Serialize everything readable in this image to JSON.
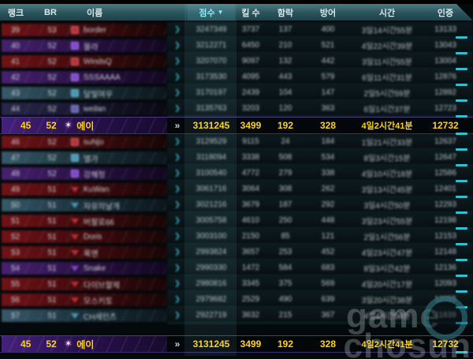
{
  "header": {
    "columns": [
      {
        "key": "rank",
        "label": "랭크"
      },
      {
        "key": "br",
        "label": "BR"
      },
      {
        "key": "name",
        "label": "이름"
      },
      {
        "key": "chev",
        "label": ""
      },
      {
        "key": "score",
        "label": "점수",
        "sorted": true
      },
      {
        "key": "kills",
        "label": "킬 수"
      },
      {
        "key": "capture",
        "label": "함락"
      },
      {
        "key": "defense",
        "label": "방어"
      },
      {
        "key": "time",
        "label": "시간"
      },
      {
        "key": "cert",
        "label": "인증"
      }
    ]
  },
  "icons": {
    "chevron": "❯",
    "chevron_highlight": "»",
    "sort_desc": "▼"
  },
  "colors": {
    "accent_cyan": "#8deefb",
    "highlight_yellow": "#ffd21e",
    "teal_dash": "#2fc0d2",
    "banner_red": "#7a1418",
    "banner_purple": "#4d2378",
    "banner_blue": "#3c6072"
  },
  "rows": [
    {
      "rank": "39",
      "br": "53",
      "name": "border",
      "score": "3247349",
      "kills": "3737",
      "capture": "137",
      "defense": "400",
      "time": "3일14시간55분",
      "cert": "13133",
      "theme": "red",
      "badge": "square",
      "highlighted": false
    },
    {
      "rank": "40",
      "br": "52",
      "name": "몰라",
      "score": "3212271",
      "kills": "6450",
      "capture": "210",
      "defense": "521",
      "time": "4일22시간39분",
      "cert": "13043",
      "theme": "purple",
      "badge": "square",
      "highlighted": false
    },
    {
      "rank": "41",
      "br": "52",
      "name": "WindsQ",
      "score": "3207070",
      "kills": "9097",
      "capture": "132",
      "defense": "442",
      "time": "3일11시간55분",
      "cert": "13004",
      "theme": "red",
      "badge": "square",
      "highlighted": false
    },
    {
      "rank": "42",
      "br": "52",
      "name": "SSSAAAA",
      "score": "3173530",
      "kills": "4095",
      "capture": "443",
      "defense": "579",
      "time": "6일11시간31분",
      "cert": "12876",
      "theme": "purple",
      "badge": "square",
      "highlighted": false
    },
    {
      "rank": "43",
      "br": "52",
      "name": "달빛여우",
      "score": "3170197",
      "kills": "2439",
      "capture": "104",
      "defense": "147",
      "time": "2일5시간59분",
      "cert": "12892",
      "theme": "blue",
      "badge": "square",
      "highlighted": false
    },
    {
      "rank": "44",
      "br": "52",
      "name": "weilan",
      "score": "3135763",
      "kills": "3203",
      "capture": "120",
      "defense": "363",
      "time": "6일1시간37분",
      "cert": "12723",
      "theme": "navy",
      "badge": "square",
      "highlighted": false
    },
    {
      "rank": "45",
      "br": "52",
      "name": "에이",
      "score": "3131245",
      "kills": "3499",
      "capture": "192",
      "defense": "328",
      "time": "4일2시간41분",
      "cert": "12732",
      "theme": "highlight",
      "badge": "star",
      "highlighted": true
    },
    {
      "rank": "46",
      "br": "52",
      "name": "suNjo",
      "score": "3129529",
      "kills": "9115",
      "capture": "24",
      "defense": "184",
      "time": "1일21시간33분",
      "cert": "12637",
      "theme": "red",
      "badge": "square",
      "highlighted": false
    },
    {
      "rank": "47",
      "br": "52",
      "name": "엘가",
      "score": "3118094",
      "kills": "3338",
      "capture": "508",
      "defense": "534",
      "time": "8일3시간15분",
      "cert": "12647",
      "theme": "blue",
      "badge": "square",
      "highlighted": false
    },
    {
      "rank": "48",
      "br": "52",
      "name": "강혜정",
      "score": "3100540",
      "kills": "4772",
      "capture": "279",
      "defense": "338",
      "time": "4일10시간18분",
      "cert": "12586",
      "theme": "purple",
      "badge": "square",
      "highlighted": false
    },
    {
      "rank": "49",
      "br": "51",
      "name": "KuWan",
      "score": "3061716",
      "kills": "3064",
      "capture": "308",
      "defense": "262",
      "time": "3일13시간45분",
      "cert": "12401",
      "theme": "red",
      "badge": "triangle",
      "highlighted": false
    },
    {
      "rank": "50",
      "br": "51",
      "name": "자유의날개",
      "score": "3021216",
      "kills": "3679",
      "capture": "187",
      "defense": "292",
      "time": "3일4시간50분",
      "cert": "12293",
      "theme": "blue",
      "badge": "triangle",
      "highlighted": false
    },
    {
      "rank": "51",
      "br": "51",
      "name": "버팔로66",
      "score": "3005758",
      "kills": "4610",
      "capture": "250",
      "defense": "448",
      "time": "3일23시간55분",
      "cert": "12198",
      "theme": "red",
      "badge": "triangle",
      "highlighted": false
    },
    {
      "rank": "52",
      "br": "51",
      "name": "Doris",
      "score": "3003100",
      "kills": "2150",
      "capture": "85",
      "defense": "121",
      "time": "2일1시간56분",
      "cert": "12153",
      "theme": "red",
      "badge": "triangle",
      "highlighted": false
    },
    {
      "rank": "53",
      "br": "51",
      "name": "록맨",
      "score": "2993824",
      "kills": "3657",
      "capture": "253",
      "defense": "452",
      "time": "4일23시간47분",
      "cert": "12148",
      "theme": "red",
      "badge": "triangle",
      "highlighted": false
    },
    {
      "rank": "54",
      "br": "51",
      "name": "Snake",
      "score": "2990330",
      "kills": "1472",
      "capture": "584",
      "defense": "683",
      "time": "8일3시간42분",
      "cert": "12136",
      "theme": "purple",
      "badge": "triangle",
      "highlighted": false
    },
    {
      "rank": "55",
      "br": "51",
      "name": "다이브할제",
      "score": "2980816",
      "kills": "3345",
      "capture": "375",
      "defense": "569",
      "time": "4일20시간17분",
      "cert": "12093",
      "theme": "red",
      "badge": "triangle",
      "highlighted": false
    },
    {
      "rank": "56",
      "br": "51",
      "name": "모스키토",
      "score": "2979682",
      "kills": "2529",
      "capture": "490",
      "defense": "639",
      "time": "3일20시간38분",
      "cert": "12055",
      "theme": "red",
      "badge": "triangle",
      "highlighted": false
    },
    {
      "rank": "57",
      "br": "51",
      "name": "CH세인츠",
      "score": "2922719",
      "kills": "3632",
      "capture": "215",
      "defense": "367",
      "time": "4일4시간58분",
      "cert": "11839",
      "theme": "blue",
      "badge": "triangle",
      "highlighted": false
    }
  ],
  "pinned_row": {
    "rank": "45",
    "br": "52",
    "name": "에이",
    "score": "3131245",
    "kills": "3499",
    "capture": "192",
    "defense": "328",
    "time": "4일2시간41분",
    "cert": "12732",
    "theme": "highlight",
    "badge": "star",
    "highlighted": true
  },
  "watermark": {
    "line1": "game",
    "line2": "chosun"
  }
}
